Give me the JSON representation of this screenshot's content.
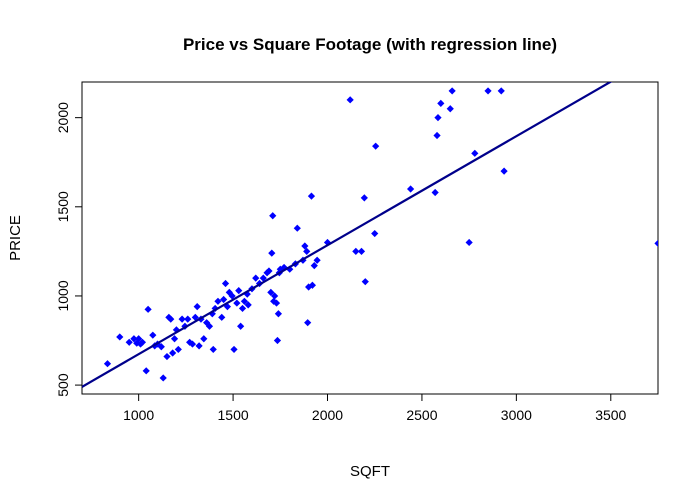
{
  "chart_data": {
    "type": "scatter",
    "title": "Price vs Square Footage (with regression line)",
    "xlabel": "SQFT",
    "ylabel": "PRICE",
    "xlim": [
      700,
      3750
    ],
    "ylim": [
      450,
      2200
    ],
    "xticks": [
      "1000",
      "1500",
      "2000",
      "2500",
      "3000",
      "3500"
    ],
    "yticks": [
      "500",
      "1000",
      "1500",
      "2000"
    ],
    "grid": false,
    "colors": {
      "points": "#0000ff",
      "line": "#00008b",
      "axes": "#000000"
    },
    "regression": {
      "x": [
        700,
        3530
      ],
      "y": [
        490,
        2220
      ]
    },
    "points": [
      [
        835,
        620
      ],
      [
        900,
        770
      ],
      [
        950,
        740
      ],
      [
        975,
        760
      ],
      [
        990,
        735
      ],
      [
        1000,
        760
      ],
      [
        1010,
        730
      ],
      [
        1020,
        740
      ],
      [
        1040,
        580
      ],
      [
        1050,
        925
      ],
      [
        1075,
        780
      ],
      [
        1085,
        720
      ],
      [
        1100,
        730
      ],
      [
        1120,
        715
      ],
      [
        1130,
        540
      ],
      [
        1150,
        660
      ],
      [
        1160,
        880
      ],
      [
        1170,
        870
      ],
      [
        1180,
        680
      ],
      [
        1190,
        760
      ],
      [
        1200,
        810
      ],
      [
        1210,
        700
      ],
      [
        1230,
        870
      ],
      [
        1245,
        830
      ],
      [
        1260,
        870
      ],
      [
        1270,
        740
      ],
      [
        1285,
        730
      ],
      [
        1300,
        880
      ],
      [
        1310,
        940
      ],
      [
        1320,
        720
      ],
      [
        1330,
        870
      ],
      [
        1345,
        760
      ],
      [
        1360,
        850
      ],
      [
        1375,
        830
      ],
      [
        1390,
        900
      ],
      [
        1395,
        700
      ],
      [
        1405,
        930
      ],
      [
        1420,
        970
      ],
      [
        1440,
        880
      ],
      [
        1450,
        980
      ],
      [
        1460,
        1070
      ],
      [
        1470,
        940
      ],
      [
        1480,
        1020
      ],
      [
        1495,
        1000
      ],
      [
        1505,
        700
      ],
      [
        1520,
        960
      ],
      [
        1530,
        1030
      ],
      [
        1540,
        830
      ],
      [
        1550,
        930
      ],
      [
        1560,
        970
      ],
      [
        1575,
        1010
      ],
      [
        1580,
        950
      ],
      [
        1600,
        1040
      ],
      [
        1620,
        1100
      ],
      [
        1640,
        1070
      ],
      [
        1660,
        1100
      ],
      [
        1680,
        1130
      ],
      [
        1690,
        1140
      ],
      [
        1700,
        1020
      ],
      [
        1705,
        1240
      ],
      [
        1710,
        1450
      ],
      [
        1715,
        970
      ],
      [
        1720,
        1000
      ],
      [
        1730,
        960
      ],
      [
        1735,
        750
      ],
      [
        1740,
        900
      ],
      [
        1745,
        1130
      ],
      [
        1750,
        1150
      ],
      [
        1770,
        1160
      ],
      [
        1800,
        1150
      ],
      [
        1830,
        1180
      ],
      [
        1840,
        1380
      ],
      [
        1870,
        1200
      ],
      [
        1880,
        1280
      ],
      [
        1890,
        1250
      ],
      [
        1895,
        850
      ],
      [
        1900,
        1050
      ],
      [
        1915,
        1560
      ],
      [
        1920,
        1060
      ],
      [
        1930,
        1170
      ],
      [
        1945,
        1200
      ],
      [
        2000,
        1300
      ],
      [
        2120,
        2100
      ],
      [
        2150,
        1250
      ],
      [
        2180,
        1250
      ],
      [
        2195,
        1550
      ],
      [
        2200,
        1080
      ],
      [
        2250,
        1350
      ],
      [
        2255,
        1840
      ],
      [
        2440,
        1600
      ],
      [
        2570,
        1580
      ],
      [
        2580,
        1900
      ],
      [
        2585,
        2000
      ],
      [
        2600,
        2080
      ],
      [
        2650,
        2050
      ],
      [
        2660,
        2150
      ],
      [
        2750,
        1300
      ],
      [
        2780,
        1800
      ],
      [
        2850,
        2150
      ],
      [
        2920,
        2150
      ],
      [
        2935,
        1700
      ],
      [
        3750,
        1295
      ]
    ]
  }
}
